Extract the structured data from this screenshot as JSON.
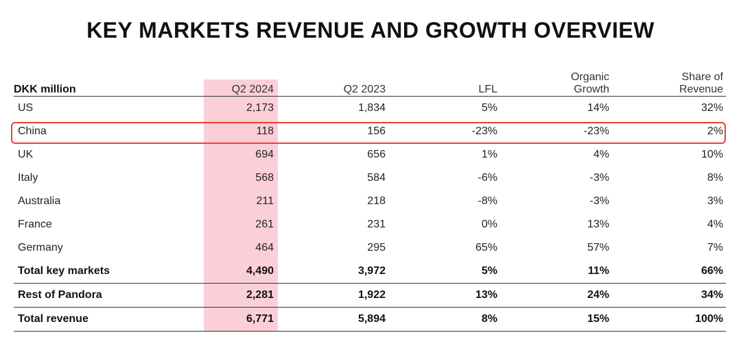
{
  "title": "KEY MARKETS REVENUE AND GROWTH OVERVIEW",
  "colors": {
    "highlight_column": "#fbcfd7",
    "highlight_box": "#e8403a"
  },
  "chart_data": {
    "type": "table",
    "title": "KEY MARKETS REVENUE AND GROWTH OVERVIEW",
    "columns": [
      "DKK million",
      "Q2 2024",
      "Q2 2023",
      "LFL",
      "Organic Growth",
      "Share of Revenue"
    ],
    "header_lines": {
      "organic": [
        "Organic",
        "Growth"
      ],
      "share": [
        "Share of",
        "Revenue"
      ]
    },
    "rows": [
      {
        "name": "US",
        "q2_2024": "2,173",
        "q2_2023": "1,834",
        "lfl": "5%",
        "organic": "14%",
        "share": "32%"
      },
      {
        "name": "China",
        "q2_2024": "118",
        "q2_2023": "156",
        "lfl": "-23%",
        "organic": "-23%",
        "share": "2%"
      },
      {
        "name": "UK",
        "q2_2024": "694",
        "q2_2023": "656",
        "lfl": "1%",
        "organic": "4%",
        "share": "10%"
      },
      {
        "name": "Italy",
        "q2_2024": "568",
        "q2_2023": "584",
        "lfl": "-6%",
        "organic": "-3%",
        "share": "8%"
      },
      {
        "name": "Australia",
        "q2_2024": "211",
        "q2_2023": "218",
        "lfl": "-8%",
        "organic": "-3%",
        "share": "3%"
      },
      {
        "name": "France",
        "q2_2024": "261",
        "q2_2023": "231",
        "lfl": "0%",
        "organic": "13%",
        "share": "4%"
      },
      {
        "name": "Germany",
        "q2_2024": "464",
        "q2_2023": "295",
        "lfl": "65%",
        "organic": "57%",
        "share": "7%"
      },
      {
        "name": "Total key markets",
        "q2_2024": "4,490",
        "q2_2023": "3,972",
        "lfl": "5%",
        "organic": "11%",
        "share": "66%"
      },
      {
        "name": "Rest of Pandora",
        "q2_2024": "2,281",
        "q2_2023": "1,922",
        "lfl": "13%",
        "organic": "24%",
        "share": "34%"
      },
      {
        "name": "Total revenue",
        "q2_2024": "6,771",
        "q2_2023": "5,894",
        "lfl": "8%",
        "organic": "15%",
        "share": "100%"
      }
    ],
    "highlighted_column": "Q2 2024",
    "highlighted_row": "China"
  }
}
